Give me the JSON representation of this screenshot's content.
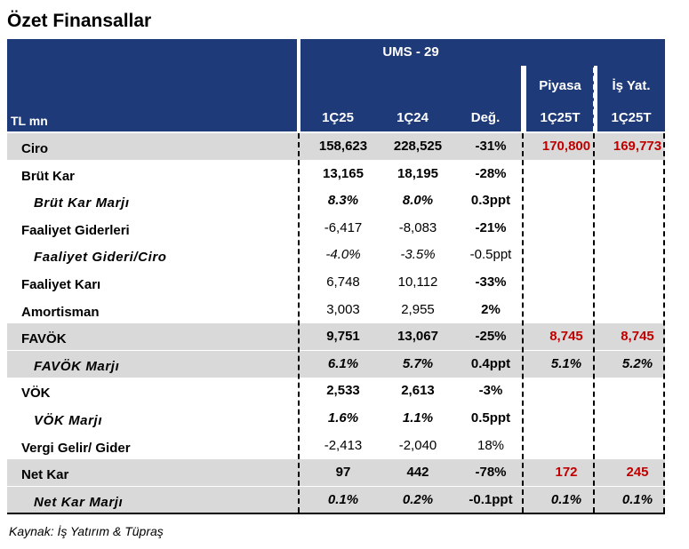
{
  "title": "Özet Finansallar",
  "header": {
    "unit": "TL mn",
    "group_label": "UMS - 29",
    "piyasa": "Piyasa",
    "is_yat": "İş Yat.",
    "columns": [
      "1Ç25",
      "1Ç24",
      "Değ.",
      "1Ç25T",
      "1Ç25T"
    ]
  },
  "rows": [
    {
      "label": "Ciro",
      "level": 0,
      "shaded": true,
      "values": [
        "158,623",
        "228,525",
        "-31%",
        "170,800",
        "169,773"
      ],
      "bold": [
        true,
        true,
        true,
        true,
        true
      ],
      "italic": [
        false,
        false,
        false,
        false,
        false
      ],
      "red": [
        false,
        false,
        false,
        true,
        true
      ]
    },
    {
      "label": "Brüt Kar",
      "level": 0,
      "shaded": false,
      "values": [
        "13,165",
        "18,195",
        "-28%",
        "",
        ""
      ],
      "bold": [
        true,
        true,
        true,
        false,
        false
      ],
      "italic": [
        false,
        false,
        false,
        false,
        false
      ],
      "red": [
        false,
        false,
        false,
        false,
        false
      ]
    },
    {
      "label": "Brüt Kar Marjı",
      "level": 1,
      "shaded": false,
      "values": [
        "8.3%",
        "8.0%",
        "0.3ppt",
        "",
        ""
      ],
      "bold": [
        true,
        true,
        true,
        false,
        false
      ],
      "italic": [
        true,
        true,
        false,
        false,
        false
      ],
      "red": [
        false,
        false,
        false,
        false,
        false
      ]
    },
    {
      "label": "Faaliyet Giderleri",
      "level": 0,
      "shaded": false,
      "values": [
        "-6,417",
        "-8,083",
        "-21%",
        "",
        ""
      ],
      "bold": [
        false,
        false,
        true,
        false,
        false
      ],
      "italic": [
        false,
        false,
        false,
        false,
        false
      ],
      "red": [
        false,
        false,
        false,
        false,
        false
      ]
    },
    {
      "label": "Faaliyet Gideri/Ciro",
      "level": 1,
      "shaded": false,
      "values": [
        "-4.0%",
        "-3.5%",
        "-0.5ppt",
        "",
        ""
      ],
      "bold": [
        false,
        false,
        false,
        false,
        false
      ],
      "italic": [
        true,
        true,
        false,
        false,
        false
      ],
      "red": [
        false,
        false,
        false,
        false,
        false
      ]
    },
    {
      "label": "Faaliyet Karı",
      "level": 0,
      "shaded": false,
      "values": [
        "6,748",
        "10,112",
        "-33%",
        "",
        ""
      ],
      "bold": [
        false,
        false,
        true,
        false,
        false
      ],
      "italic": [
        false,
        false,
        false,
        false,
        false
      ],
      "red": [
        false,
        false,
        false,
        false,
        false
      ]
    },
    {
      "label": "Amortisman",
      "level": 0,
      "shaded": false,
      "values": [
        "3,003",
        "2,955",
        "2%",
        "",
        ""
      ],
      "bold": [
        false,
        false,
        true,
        false,
        false
      ],
      "italic": [
        false,
        false,
        false,
        false,
        false
      ],
      "red": [
        false,
        false,
        false,
        false,
        false
      ]
    },
    {
      "label": "FAVÖK",
      "level": 0,
      "shaded": true,
      "values": [
        "9,751",
        "13,067",
        "-25%",
        "8,745",
        "8,745"
      ],
      "bold": [
        true,
        true,
        true,
        true,
        true
      ],
      "italic": [
        false,
        false,
        false,
        false,
        false
      ],
      "red": [
        false,
        false,
        false,
        true,
        true
      ]
    },
    {
      "label": "FAVÖK Marjı",
      "level": 1,
      "shaded": true,
      "values": [
        "6.1%",
        "5.7%",
        "0.4ppt",
        "5.1%",
        "5.2%"
      ],
      "bold": [
        true,
        true,
        true,
        true,
        true
      ],
      "italic": [
        true,
        true,
        false,
        true,
        true
      ],
      "red": [
        false,
        false,
        false,
        false,
        false
      ]
    },
    {
      "label": "VÖK",
      "level": 0,
      "shaded": false,
      "values": [
        "2,533",
        "2,613",
        "-3%",
        "",
        ""
      ],
      "bold": [
        true,
        true,
        true,
        false,
        false
      ],
      "italic": [
        false,
        false,
        false,
        false,
        false
      ],
      "red": [
        false,
        false,
        false,
        false,
        false
      ]
    },
    {
      "label": "VÖK Marjı",
      "level": 1,
      "shaded": false,
      "values": [
        "1.6%",
        "1.1%",
        "0.5ppt",
        "",
        ""
      ],
      "bold": [
        true,
        true,
        true,
        false,
        false
      ],
      "italic": [
        true,
        true,
        false,
        false,
        false
      ],
      "red": [
        false,
        false,
        false,
        false,
        false
      ]
    },
    {
      "label": "Vergi Gelir/ Gider",
      "level": 0,
      "shaded": false,
      "values": [
        "-2,413",
        "-2,040",
        "18%",
        "",
        ""
      ],
      "bold": [
        false,
        false,
        false,
        false,
        false
      ],
      "italic": [
        false,
        false,
        false,
        false,
        false
      ],
      "red": [
        false,
        false,
        false,
        false,
        false
      ]
    },
    {
      "label": "Net Kar",
      "level": 0,
      "shaded": true,
      "values": [
        "97",
        "442",
        "-78%",
        "172",
        "245"
      ],
      "bold": [
        true,
        true,
        true,
        true,
        true
      ],
      "italic": [
        false,
        false,
        false,
        false,
        false
      ],
      "red": [
        false,
        false,
        false,
        true,
        true
      ]
    },
    {
      "label": "Net Kar  Marjı",
      "level": 1,
      "shaded": true,
      "values": [
        "0.1%",
        "0.2%",
        "-0.1ppt",
        "0.1%",
        "0.1%"
      ],
      "bold": [
        true,
        true,
        true,
        true,
        true
      ],
      "italic": [
        true,
        true,
        false,
        true,
        true
      ],
      "red": [
        false,
        false,
        false,
        false,
        false
      ]
    }
  ],
  "source": "Kaynak: İş Yatırım & Tüpraş",
  "colors": {
    "header_bg": "#1f3a78",
    "shaded_bg": "#d9d9d9",
    "highlight": "#c00000"
  }
}
